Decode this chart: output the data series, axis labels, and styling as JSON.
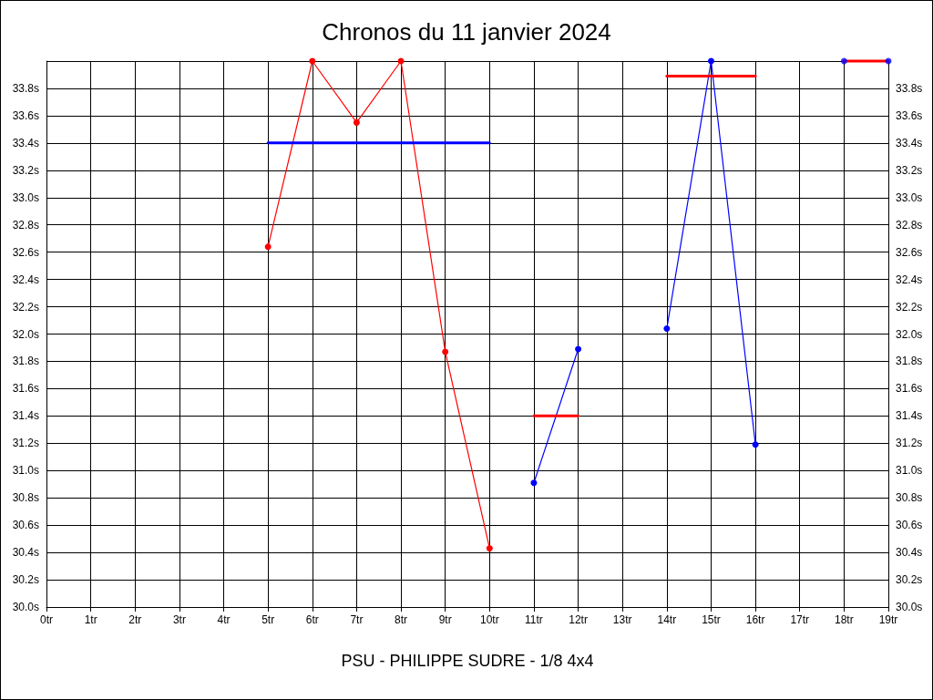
{
  "chart_data": {
    "type": "line",
    "title": "Chronos du 11 janvier 2024",
    "xlabel": "PSU - PHILIPPE SUDRE - 1/8 4x4",
    "series": [
      {
        "color": "#ff0000",
        "x": [
          5,
          6,
          7,
          8,
          9,
          10
        ],
        "values": [
          32.64,
          34.0,
          33.55,
          34.0,
          31.87,
          30.43
        ]
      },
      {
        "color": "#0000ff",
        "x": [
          5,
          10
        ],
        "values": [
          33.4,
          33.4
        ],
        "marker": "none"
      },
      {
        "color": "#0000ff",
        "x": [
          11,
          12
        ],
        "values": [
          30.91,
          31.89
        ]
      },
      {
        "color": "#ff0000",
        "x": [
          11,
          12
        ],
        "values": [
          31.4,
          31.4
        ],
        "marker": "none"
      },
      {
        "color": "#0000ff",
        "x": [
          14,
          15,
          16
        ],
        "values": [
          32.04,
          34.0,
          31.19
        ]
      },
      {
        "color": "#ff0000",
        "x": [
          14,
          16
        ],
        "values": [
          33.89,
          33.89
        ],
        "marker": "none"
      },
      {
        "type": "scatter",
        "color": "#0000ff",
        "x": [
          18,
          19
        ],
        "values": [
          34.0,
          34.0
        ]
      },
      {
        "color": "#ff0000",
        "x": [
          18,
          19
        ],
        "values": [
          34.0,
          34.0
        ],
        "marker": "none"
      }
    ],
    "xlim": [
      0,
      19
    ],
    "xticks": [
      {
        "value": 0,
        "label": "0tr"
      },
      {
        "value": 1,
        "label": "1tr"
      },
      {
        "value": 2,
        "label": "2tr"
      },
      {
        "value": 3,
        "label": "3tr"
      },
      {
        "value": 4,
        "label": "4tr"
      },
      {
        "value": 5,
        "label": "5tr"
      },
      {
        "value": 6,
        "label": "6tr"
      },
      {
        "value": 7,
        "label": "7tr"
      },
      {
        "value": 8,
        "label": "8tr"
      },
      {
        "value": 9,
        "label": "9tr"
      },
      {
        "value": 10,
        "label": "10tr"
      },
      {
        "value": 11,
        "label": "11tr"
      },
      {
        "value": 12,
        "label": "12tr"
      },
      {
        "value": 13,
        "label": "13tr"
      },
      {
        "value": 14,
        "label": "14tr"
      },
      {
        "value": 15,
        "label": "15tr"
      },
      {
        "value": 16,
        "label": "16tr"
      },
      {
        "value": 17,
        "label": "17tr"
      },
      {
        "value": 18,
        "label": "18tr"
      },
      {
        "value": 19,
        "label": "19tr"
      }
    ],
    "ylim": [
      30,
      34
    ],
    "yticks": [
      {
        "value": 30,
        "label": "30.0s"
      },
      {
        "value": 30.2,
        "label": "30.2s"
      },
      {
        "value": 30.4,
        "label": "30.4s"
      },
      {
        "value": 30.6,
        "label": "30.6s"
      },
      {
        "value": 30.8,
        "label": "30.8s"
      },
      {
        "value": 31,
        "label": "31.0s"
      },
      {
        "value": 31.2,
        "label": "31.2s"
      },
      {
        "value": 31.4,
        "label": "31.4s"
      },
      {
        "value": 31.6,
        "label": "31.6s"
      },
      {
        "value": 31.8,
        "label": "31.8s"
      },
      {
        "value": 32,
        "label": "32.0s"
      },
      {
        "value": 32.2,
        "label": "32.2s"
      },
      {
        "value": 32.4,
        "label": "32.4s"
      },
      {
        "value": 32.6,
        "label": "32.6s"
      },
      {
        "value": 32.8,
        "label": "32.8s"
      },
      {
        "value": 33,
        "label": "33.0s"
      },
      {
        "value": 33.2,
        "label": "33.2s"
      },
      {
        "value": 33.4,
        "label": "33.4s"
      },
      {
        "value": 33.6,
        "label": "33.6s"
      },
      {
        "value": 33.8,
        "label": "33.8s"
      },
      {
        "value": 34,
        "label": null
      }
    ],
    "y2lim": [
      30,
      34
    ],
    "y2ticks": [
      {
        "value": 30,
        "label": "30.0s"
      },
      {
        "value": 30.2,
        "label": "30.2s"
      },
      {
        "value": 30.4,
        "label": "30.4s"
      },
      {
        "value": 30.6,
        "label": "30.6s"
      },
      {
        "value": 30.8,
        "label": "30.8s"
      },
      {
        "value": 31,
        "label": "31.0s"
      },
      {
        "value": 31.2,
        "label": "31.2s"
      },
      {
        "value": 31.4,
        "label": "31.4s"
      },
      {
        "value": 31.6,
        "label": "31.6s"
      },
      {
        "value": 31.8,
        "label": "31.8s"
      },
      {
        "value": 32,
        "label": "32.0s"
      },
      {
        "value": 32.2,
        "label": "32.2s"
      },
      {
        "value": 32.4,
        "label": "32.4s"
      },
      {
        "value": 32.6,
        "label": "32.6s"
      },
      {
        "value": 32.8,
        "label": "32.8s"
      },
      {
        "value": 33,
        "label": "33.0s"
      },
      {
        "value": 33.2,
        "label": "33.2s"
      },
      {
        "value": 33.4,
        "label": "33.4s"
      },
      {
        "value": 33.6,
        "label": "33.6s"
      },
      {
        "value": 33.8,
        "label": "33.8s"
      },
      {
        "value": 34,
        "label": null
      }
    ],
    "grid": true,
    "marker": "circle",
    "line_style": "solid"
  }
}
